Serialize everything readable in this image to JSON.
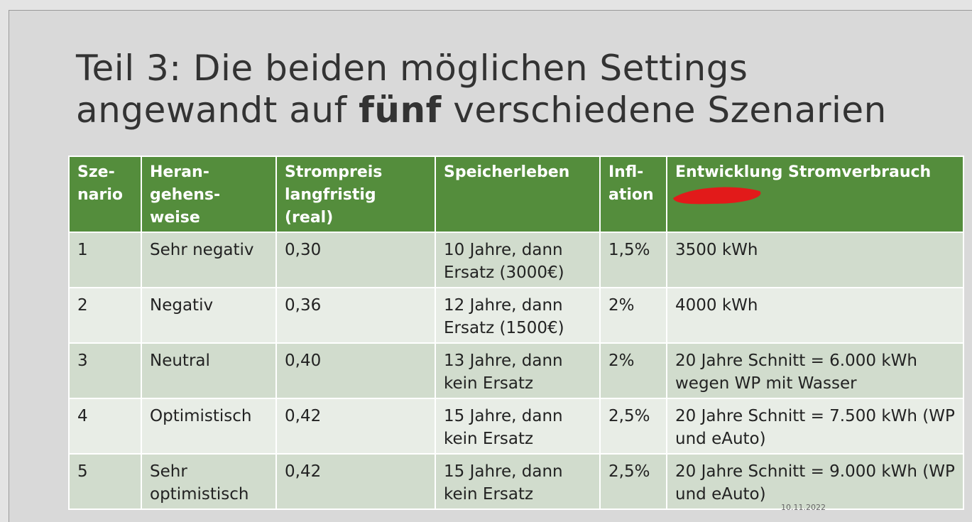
{
  "title": {
    "line1": "Teil 3: Die beiden möglichen Settings",
    "line2": [
      "angewandt auf",
      "fünf",
      "verschiedene Szenarien"
    ]
  },
  "table": {
    "header": [
      [
        "Sze-",
        "nario"
      ],
      [
        "Heran-",
        "gehens-",
        "weise"
      ],
      [
        "Strompreis",
        "langfristig",
        "(real)"
      ],
      [
        "Speicherleben"
      ],
      [
        "Infl-",
        "ation"
      ],
      [
        "Entwicklung Stromverbrauch"
      ]
    ],
    "rows": [
      [
        "1",
        "Sehr negativ",
        "0,30",
        "10 Jahre, dann Ersatz (3000€)",
        "1,5%",
        "3500 kWh"
      ],
      [
        "2",
        "Negativ",
        "0,36",
        "12 Jahre, dann Ersatz (1500€)",
        "2%",
        "4000 kWh"
      ],
      [
        "3",
        "Neutral",
        "0,40",
        "13 Jahre, dann kein Ersatz",
        "2%",
        "20 Jahre Schnitt = 6.000 kWh wegen WP mit Wasser"
      ],
      [
        "4",
        "Optimistisch",
        "0,42",
        "15 Jahre, dann kein Ersatz",
        "2,5%",
        "20 Jahre Schnitt = 7.500 kWh (WP und eAuto)"
      ],
      [
        "5",
        "Sehr optimistisch",
        "0,42",
        "15 Jahre, dann kein Ersatz",
        "2,5%",
        "20 Jahre Schnitt = 9.000 kWh (WP und eAuto)"
      ]
    ]
  },
  "footer": {
    "date": "10.11.2022"
  }
}
